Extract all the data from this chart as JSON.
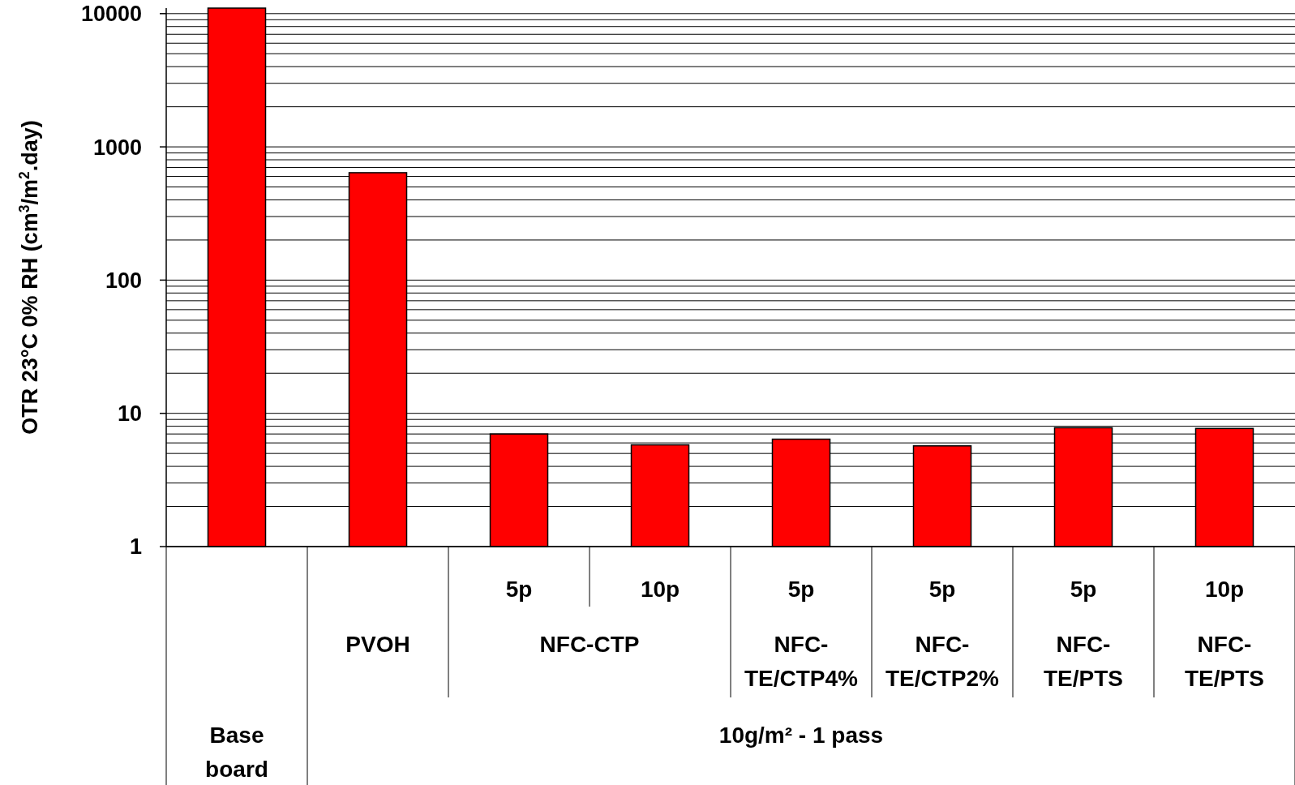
{
  "chart_data": {
    "type": "bar",
    "ylabel": "OTR 23°C 0% RH (cm$^{3}$/m$^{2}$.day)",
    "categories": [
      null,
      null,
      "5p",
      "10p",
      "5p",
      "5p",
      "5p",
      "10p"
    ],
    "values": [
      11000,
      640,
      7.0,
      5.8,
      6.4,
      5.7,
      7.8,
      7.7
    ],
    "color": "#ff0000",
    "log": true,
    "grid": "y",
    "ylim": [
      1,
      11000
    ],
    "yticks": [
      1,
      {
        "value": 2,
        "label": null
      },
      {
        "value": 3,
        "label": null
      },
      {
        "value": 4,
        "label": null
      },
      {
        "value": 5,
        "label": null
      },
      {
        "value": 6,
        "label": null
      },
      {
        "value": 7,
        "label": null
      },
      {
        "value": 8,
        "label": null
      },
      {
        "value": 9,
        "label": null
      },
      10,
      {
        "value": 20,
        "label": null
      },
      {
        "value": 30,
        "label": null
      },
      {
        "value": 40,
        "label": null
      },
      {
        "value": 50,
        "label": null
      },
      {
        "value": 60,
        "label": null
      },
      {
        "value": 70,
        "label": null
      },
      {
        "value": 80,
        "label": null
      },
      {
        "value": 90,
        "label": null
      },
      100,
      {
        "value": 200,
        "label": null
      },
      {
        "value": 300,
        "label": null
      },
      {
        "value": 400,
        "label": null
      },
      {
        "value": 500,
        "label": null
      },
      {
        "value": 600,
        "label": null
      },
      {
        "value": 700,
        "label": null
      },
      {
        "value": 800,
        "label": null
      },
      {
        "value": 900,
        "label": null
      },
      1000,
      {
        "value": 2000,
        "label": null
      },
      {
        "value": 3000,
        "label": null
      },
      {
        "value": 4000,
        "label": null
      },
      {
        "value": 5000,
        "label": null
      },
      {
        "value": 6000,
        "label": null
      },
      {
        "value": 7000,
        "label": null
      },
      {
        "value": 8000,
        "label": null
      },
      {
        "value": 9000,
        "label": null
      },
      10000
    ],
    "annotations": [
      "PVOH",
      "NFC-CTP",
      "NFC-\nTE/CTP4%",
      "NFC-\nTE/CTP2%",
      "NFC-\nTE/PTS",
      "NFC-\nTE/PTS",
      "Base\nboard",
      "10g/m² - 1 pass"
    ]
  }
}
